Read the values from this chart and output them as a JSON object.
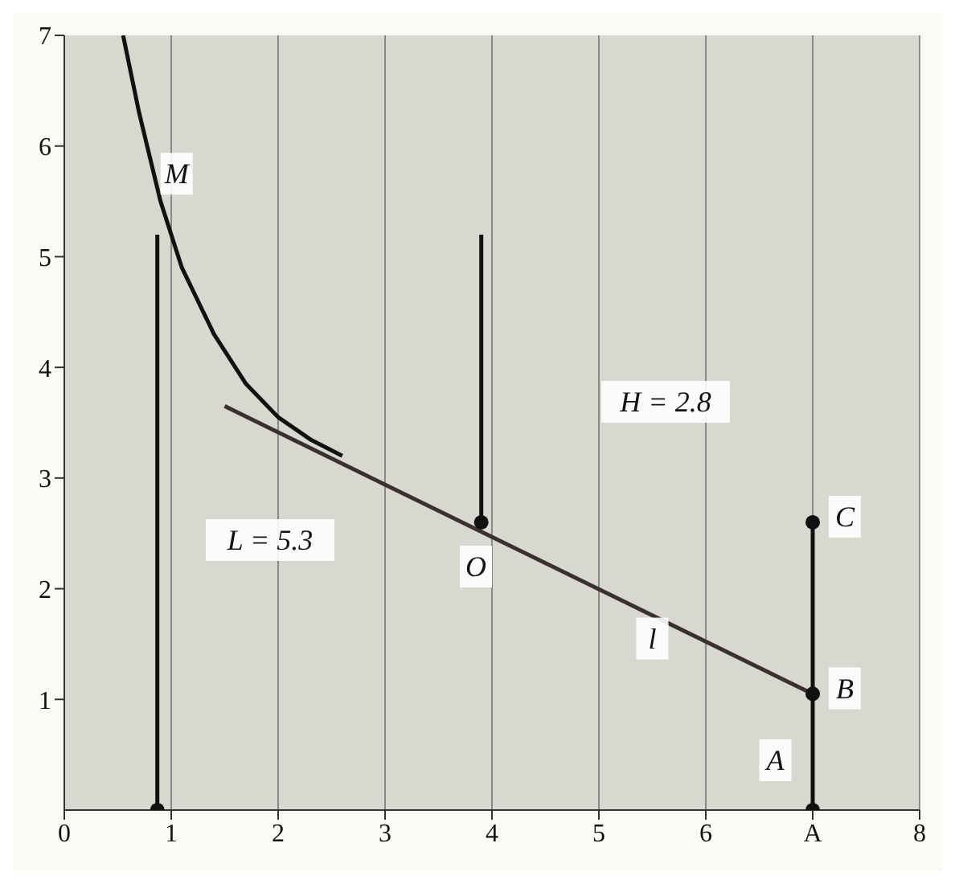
{
  "chart_data": {
    "type": "line",
    "xlim": [
      0,
      8
    ],
    "ylim": [
      0,
      7
    ],
    "xticks": [
      0,
      1,
      2,
      3,
      4,
      5,
      6,
      {
        "value": 7,
        "label": "A"
      },
      8
    ],
    "yticks": [
      1,
      2,
      3,
      4,
      5,
      6,
      7
    ],
    "grid": "x",
    "marker": "none",
    "line_style": "solid",
    "series": [
      {
        "color": "#111111",
        "x": [
          0.55,
          0.7,
          0.9,
          1.1,
          1.4,
          1.7,
          2.0,
          2.3,
          2.6
        ],
        "values": [
          7.0,
          6.3,
          5.5,
          4.9,
          4.3,
          3.85,
          3.55,
          3.35,
          3.2
        ]
      },
      {
        "color": "#3a3030",
        "x": [
          1.5,
          7
        ],
        "values": [
          3.65,
          1.05
        ]
      },
      {
        "color": "#111111",
        "x": [
          0.87,
          0.87
        ],
        "values": [
          0,
          5.2
        ]
      },
      {
        "color": "#111111",
        "x": [
          3.9,
          3.9
        ],
        "values": [
          2.6,
          5.2
        ]
      },
      {
        "color": "#111111",
        "x": [
          7,
          7
        ],
        "values": [
          0,
          2.6
        ]
      },
      {
        "type": "scatter",
        "marker": "circle",
        "color": "#111111",
        "x": [
          0.87,
          3.9,
          7,
          7,
          7
        ],
        "values": [
          0,
          2.6,
          1.05,
          2.6,
          0
        ]
      }
    ],
    "annotations": [
      {
        "text": "M",
        "x": 1.05,
        "y": 5.75
      },
      "L = 5.3",
      "H = 2.8",
      {
        "text": "O",
        "x": 3.85,
        "y": 2.2
      },
      {
        "text": "C",
        "x": 7.3,
        "y": 2.65
      },
      {
        "text": "l",
        "x": 5.5,
        "y": 1.55
      },
      {
        "text": "B",
        "x": 7.3,
        "y": 1.1
      },
      {
        "text": "A",
        "x": 6.65,
        "y": 0.45
      }
    ]
  }
}
